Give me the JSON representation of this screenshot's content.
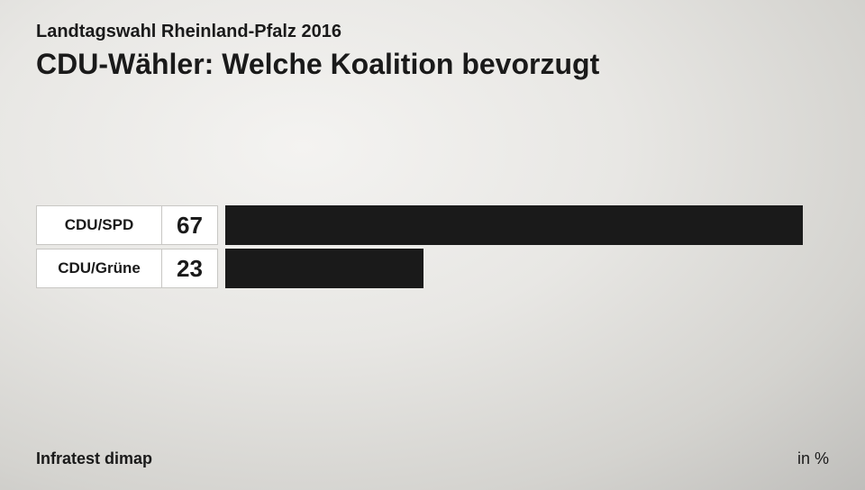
{
  "header": {
    "supertitle": "Landtagswahl Rheinland-Pfalz 2016",
    "title": "CDU-Wähler: Welche Koalition bevorzugt"
  },
  "chart": {
    "type": "bar",
    "max_value": 70,
    "bar_color": "#1a1a1a",
    "label_bg": "#ffffff",
    "label_border": "#c8c7c4",
    "bars": [
      {
        "label": "CDU/SPD",
        "value": 67
      },
      {
        "label": "CDU/Grüne",
        "value": 23
      }
    ]
  },
  "footer": {
    "source": "Infratest dimap",
    "unit": "in %"
  }
}
